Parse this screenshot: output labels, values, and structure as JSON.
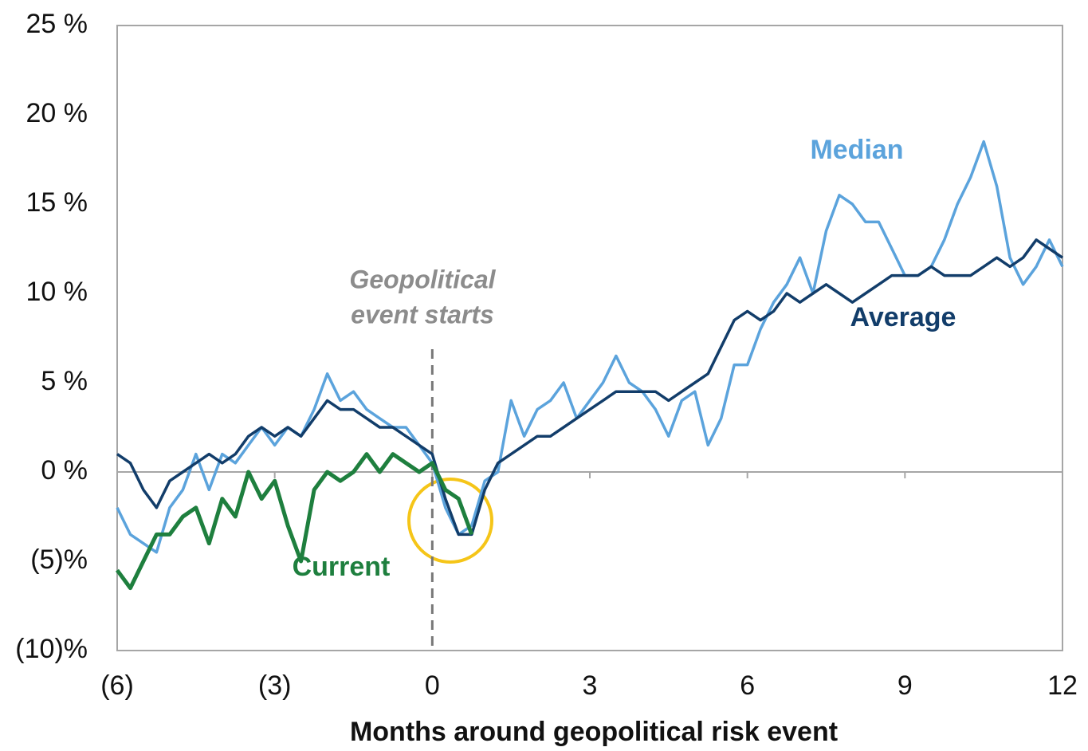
{
  "chart_data": {
    "type": "line",
    "x_label": "Months around geopolitical risk event",
    "annotation": [
      "Geopolitical",
      "event starts"
    ],
    "event_x": 0,
    "x": [
      -6,
      -5.75,
      -5.5,
      -5.25,
      -5,
      -4.75,
      -4.5,
      -4.25,
      -4,
      -3.75,
      -3.5,
      -3.25,
      -3,
      -2.75,
      -2.5,
      -2.25,
      -2,
      -1.75,
      -1.5,
      -1.25,
      -1,
      -0.75,
      -0.5,
      -0.25,
      0,
      0.25,
      0.5,
      0.75,
      1,
      1.25,
      1.5,
      1.75,
      2,
      2.25,
      2.5,
      2.75,
      3,
      3.25,
      3.5,
      3.75,
      4,
      4.25,
      4.5,
      4.75,
      5,
      5.25,
      5.5,
      5.75,
      6,
      6.25,
      6.5,
      6.75,
      7,
      7.25,
      7.5,
      7.75,
      8,
      8.25,
      8.5,
      8.75,
      9,
      9.25,
      9.5,
      9.75,
      10,
      10.25,
      10.5,
      10.75,
      11,
      11.25,
      11.5,
      11.75,
      12
    ],
    "series": [
      {
        "name": "Median",
        "color": "#5ba3dc",
        "values": [
          -2,
          -3.5,
          -4,
          -4.5,
          -2,
          -1,
          1,
          -1,
          1,
          0.5,
          1.5,
          2.5,
          1.5,
          2.5,
          2,
          3.5,
          5.5,
          4,
          4.5,
          3.5,
          3,
          2.5,
          2.5,
          1.5,
          0.5,
          -2,
          -3.5,
          -3,
          -0.5,
          0,
          4,
          2,
          3.5,
          4,
          5,
          3,
          4,
          5,
          6.5,
          5,
          4.5,
          3.5,
          2,
          4,
          4.5,
          1.5,
          3,
          6,
          6,
          8,
          9.5,
          10.5,
          12,
          10,
          13.5,
          15.5,
          15,
          14,
          14,
          12.5,
          11,
          11,
          11.5,
          13,
          15,
          16.5,
          18.5,
          16,
          12,
          10.5,
          11.5,
          13,
          11.5
        ]
      },
      {
        "name": "Average",
        "color": "#123d6a",
        "values": [
          1,
          0.5,
          -1,
          -2,
          -0.5,
          0,
          0.5,
          1,
          0.5,
          1,
          2,
          2.5,
          2,
          2.5,
          2,
          3,
          4,
          3.5,
          3.5,
          3,
          2.5,
          2.5,
          2,
          1.5,
          1,
          -1.5,
          -3.5,
          -3.5,
          -1,
          0.5,
          1,
          1.5,
          2,
          2,
          2.5,
          3,
          3.5,
          4,
          4.5,
          4.5,
          4.5,
          4.5,
          4,
          4.5,
          5,
          5.5,
          7,
          8.5,
          9,
          8.5,
          9,
          10,
          9.5,
          10,
          10.5,
          10,
          9.5,
          10,
          10.5,
          11,
          11,
          11,
          11.5,
          11,
          11,
          11,
          11.5,
          12,
          11.5,
          12,
          13,
          12.5,
          12
        ]
      },
      {
        "name": "Current",
        "color": "#1e7f3e",
        "values": [
          -5.5,
          -6.5,
          -5,
          -3.5,
          -3.5,
          -2.5,
          -2,
          -4,
          -1.5,
          -2.5,
          0,
          -1.5,
          -0.5,
          -3,
          -5,
          -1,
          0,
          -0.5,
          0,
          1,
          0,
          1,
          0.5,
          0,
          0.5,
          -1,
          -1.5,
          -3.5,
          null,
          null,
          null,
          null,
          null,
          null,
          null,
          null,
          null,
          null,
          null,
          null,
          null,
          null,
          null,
          null,
          null,
          null,
          null,
          null,
          null,
          null,
          null,
          null,
          null,
          null,
          null,
          null,
          null,
          null,
          null,
          null,
          null,
          null,
          null,
          null,
          null,
          null,
          null,
          null,
          null,
          null,
          null,
          null,
          null
        ]
      }
    ],
    "xlim": [
      -6,
      12
    ],
    "xticks": [
      {
        "value": -6,
        "label": "(6)"
      },
      {
        "value": -3,
        "label": "(3)"
      },
      0,
      3,
      6,
      9,
      12
    ],
    "ylim": [
      -10,
      25
    ],
    "yticks": [
      {
        "value": -10,
        "label": "(10)%"
      },
      {
        "value": -5,
        "label": "(5)%"
      },
      {
        "value": 0,
        "label": "0 %"
      },
      {
        "value": 5,
        "label": "5 %"
      },
      {
        "value": 10,
        "label": "10 %"
      },
      {
        "value": 15,
        "label": "15 %"
      },
      {
        "value": 20,
        "label": "20 %"
      },
      {
        "value": 25,
        "label": "25 %"
      }
    ]
  }
}
